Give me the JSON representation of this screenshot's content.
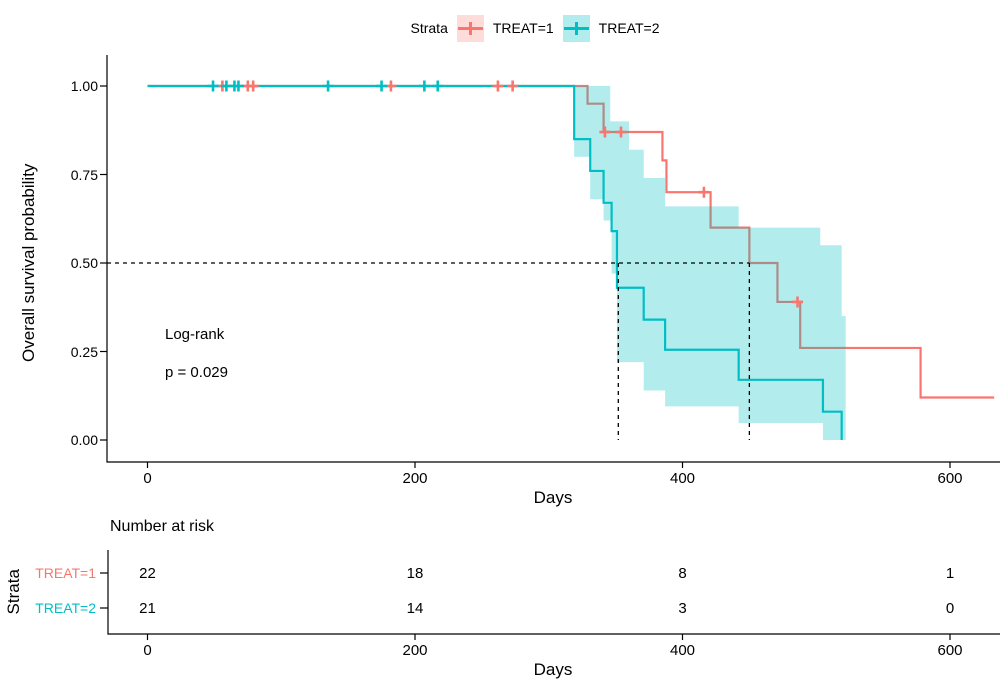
{
  "legend": {
    "title": "Strata",
    "items": [
      {
        "label": "TREAT=1",
        "color": "#F8766D",
        "fill": "#FDDCD9"
      },
      {
        "label": "TREAT=2",
        "color": "#00BFC4",
        "fill": "#B2ECED"
      }
    ]
  },
  "axes": {
    "y_label": "Overall survival probability",
    "x_label": "Days",
    "y_ticks": [
      "0.00",
      "0.25",
      "0.50",
      "0.75",
      "1.00"
    ],
    "y_tick_values": [
      0,
      0.25,
      0.5,
      0.75,
      1
    ],
    "x_ticks": [
      "0",
      "200",
      "400",
      "600"
    ],
    "x_tick_values": [
      0,
      200,
      400,
      600
    ]
  },
  "annotation": {
    "test": "Log-rank",
    "p_value": "p = 0.029"
  },
  "chart_data": {
    "type": "line",
    "subtype": "kaplan-meier-step",
    "title": "",
    "xlabel": "Days",
    "ylabel": "Overall survival probability",
    "xlim": [
      0,
      638
    ],
    "ylim": [
      0,
      1
    ],
    "grid": false,
    "legend_position": "top",
    "series": [
      {
        "name": "TREAT=1",
        "color": "#F8766D",
        "n_at_start": 22,
        "steps": [
          [
            0,
            1
          ],
          [
            329,
            0.95
          ],
          [
            341,
            0.87
          ],
          [
            385,
            0.79
          ],
          [
            388,
            0.7
          ],
          [
            421,
            0.6
          ],
          [
            450,
            0.5
          ],
          [
            471,
            0.39
          ],
          [
            488,
            0.26
          ],
          [
            578,
            0.12
          ]
        ],
        "end": 633,
        "censors": [
          [
            56,
            1
          ],
          [
            75,
            1
          ],
          [
            79,
            1
          ],
          [
            182,
            1
          ],
          [
            262,
            1
          ],
          [
            273,
            1
          ],
          [
            342,
            0.87
          ],
          [
            354,
            0.87
          ],
          [
            416,
            0.7
          ],
          [
            486,
            0.39
          ]
        ]
      },
      {
        "name": "TREAT=2",
        "color": "#00BFC4",
        "n_at_start": 21,
        "steps": [
          [
            0,
            1
          ],
          [
            319,
            0.85
          ],
          [
            331,
            0.76
          ],
          [
            341,
            0.67
          ],
          [
            347,
            0.59
          ],
          [
            351,
            0.43
          ],
          [
            371,
            0.34
          ],
          [
            387,
            0.255
          ],
          [
            442,
            0.17
          ],
          [
            505,
            0.08
          ],
          [
            519,
            0
          ]
        ],
        "end": 519,
        "censors": [
          [
            49,
            1
          ],
          [
            59,
            1
          ],
          [
            65,
            1
          ],
          [
            68,
            1
          ],
          [
            135,
            1
          ],
          [
            175,
            1
          ],
          [
            207,
            1
          ],
          [
            217,
            1
          ]
        ],
        "band": {
          "fill_rgba": "rgba(0,191,196,0.30)",
          "upper": [
            [
              319,
              1
            ],
            [
              346,
              0.9
            ],
            [
              360,
              0.82
            ],
            [
              371,
              0.74
            ],
            [
              387,
              0.66
            ],
            [
              442,
              0.6
            ],
            [
              503,
              0.55
            ],
            [
              519,
              0.35
            ]
          ],
          "lower": [
            [
              319,
              0.8
            ],
            [
              331,
              0.68
            ],
            [
              341,
              0.62
            ],
            [
              347,
              0.47
            ],
            [
              351,
              0.22
            ],
            [
              371,
              0.14
            ],
            [
              387,
              0.095
            ],
            [
              442,
              0.048
            ],
            [
              505,
              0
            ],
            [
              519,
              0
            ]
          ],
          "end": 522
        }
      }
    ],
    "median_line_p": 0.5,
    "medians": [
      {
        "name": "TREAT=1",
        "day": 450
      },
      {
        "name": "TREAT=2",
        "day": 352
      }
    ]
  },
  "risk_table": {
    "title": "Number at risk",
    "y_label": "Strata",
    "x_label": "Days",
    "times": [
      0,
      200,
      400,
      600
    ],
    "rows": [
      {
        "label": "TREAT=1",
        "color": "#F8766D",
        "counts": [
          "22",
          "18",
          "8",
          "1"
        ]
      },
      {
        "label": "TREAT=2",
        "color": "#00BFC4",
        "counts": [
          "21",
          "14",
          "3",
          "0"
        ]
      }
    ]
  }
}
